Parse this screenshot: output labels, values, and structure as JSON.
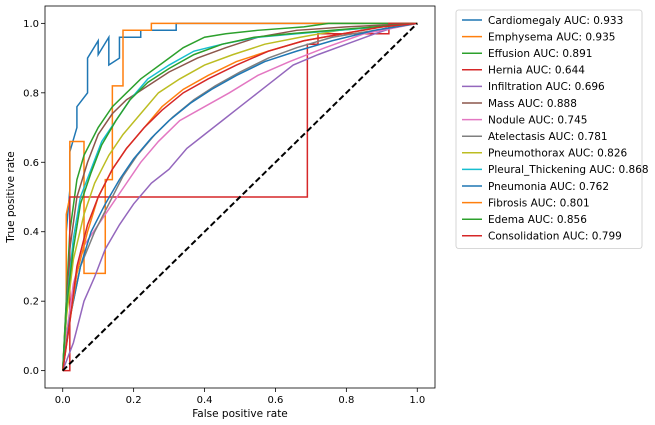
{
  "chart_data": {
    "type": "line",
    "title": "",
    "xlabel": "False positive rate",
    "ylabel": "True positive rate",
    "xlim": [
      -0.05,
      1.05
    ],
    "ylim": [
      -0.05,
      1.05
    ],
    "xticks": [
      "0.0",
      "0.2",
      "0.4",
      "0.6",
      "0.8",
      "1.0"
    ],
    "yticks": [
      "0.0",
      "0.2",
      "0.4",
      "0.6",
      "0.8",
      "1.0"
    ],
    "grid": false,
    "legend_position": "outside-right",
    "reference_line": {
      "x": [
        0,
        1
      ],
      "y": [
        0,
        1
      ],
      "color": "#000000",
      "style": "dashed"
    },
    "series": [
      {
        "name": "Cardiomegaly AUC: 0.933",
        "color": "#1f77b4",
        "x": [
          0,
          0.01,
          0.01,
          0.02,
          0.02,
          0.04,
          0.04,
          0.07,
          0.07,
          0.1,
          0.1,
          0.13,
          0.13,
          0.16,
          0.16,
          0.22,
          0.22,
          0.32,
          0.32,
          0.7,
          0.7,
          1.0
        ],
        "y": [
          0,
          0.15,
          0.4,
          0.52,
          0.63,
          0.7,
          0.76,
          0.8,
          0.9,
          0.95,
          0.91,
          0.96,
          0.88,
          0.9,
          0.96,
          0.96,
          0.98,
          0.98,
          1.0,
          1.0,
          1.0,
          1.0
        ]
      },
      {
        "name": "Emphysema AUC: 0.935",
        "color": "#ff7f0e",
        "x": [
          0,
          0.01,
          0.01,
          0.02,
          0.02,
          0.06,
          0.06,
          0.12,
          0.12,
          0.14,
          0.14,
          0.17,
          0.17,
          0.25,
          0.25,
          1.0
        ],
        "y": [
          0,
          0.2,
          0.45,
          0.5,
          0.66,
          0.66,
          0.28,
          0.28,
          0.55,
          0.55,
          0.82,
          0.82,
          0.98,
          0.98,
          1.0,
          1.0
        ]
      },
      {
        "name": "Effusion AUC: 0.891",
        "color": "#2ca02c",
        "x": [
          0,
          0.01,
          0.02,
          0.04,
          0.06,
          0.1,
          0.14,
          0.18,
          0.22,
          0.3,
          0.34,
          0.4,
          0.46,
          0.55,
          0.68,
          0.75,
          1.0
        ],
        "y": [
          0,
          0.2,
          0.4,
          0.55,
          0.62,
          0.7,
          0.76,
          0.8,
          0.84,
          0.9,
          0.93,
          0.96,
          0.97,
          0.98,
          0.99,
          1.0,
          1.0
        ]
      },
      {
        "name": "Hernia AUC: 0.644",
        "color": "#d62728",
        "x": [
          0,
          0.02,
          0.02,
          0.69,
          0.69,
          0.72,
          0.72,
          0.92,
          0.92,
          1.0
        ],
        "y": [
          0,
          0.0,
          0.5,
          0.5,
          0.94,
          0.94,
          0.97,
          0.97,
          1.0,
          1.0
        ]
      },
      {
        "name": "Infiltration AUC: 0.696",
        "color": "#9467bd",
        "x": [
          0,
          0.03,
          0.06,
          0.09,
          0.12,
          0.16,
          0.2,
          0.25,
          0.3,
          0.35,
          0.4,
          0.45,
          0.5,
          0.55,
          0.6,
          0.65,
          0.72,
          0.8,
          0.88,
          0.94,
          1.0
        ],
        "y": [
          0,
          0.08,
          0.2,
          0.27,
          0.35,
          0.42,
          0.48,
          0.54,
          0.58,
          0.64,
          0.68,
          0.72,
          0.76,
          0.8,
          0.84,
          0.88,
          0.91,
          0.94,
          0.97,
          0.99,
          1.0
        ]
      },
      {
        "name": "Mass AUC: 0.888",
        "color": "#8c564b",
        "x": [
          0,
          0.01,
          0.02,
          0.04,
          0.07,
          0.1,
          0.14,
          0.18,
          0.24,
          0.3,
          0.38,
          0.46,
          0.55,
          0.66,
          0.8,
          1.0
        ],
        "y": [
          0,
          0.18,
          0.35,
          0.5,
          0.6,
          0.68,
          0.74,
          0.78,
          0.82,
          0.86,
          0.9,
          0.93,
          0.96,
          0.98,
          0.99,
          1.0
        ]
      },
      {
        "name": "Nodule AUC: 0.745",
        "color": "#e377c2",
        "x": [
          0,
          0.01,
          0.03,
          0.06,
          0.1,
          0.14,
          0.18,
          0.22,
          0.27,
          0.33,
          0.4,
          0.47,
          0.55,
          0.64,
          0.74,
          0.85,
          1.0
        ],
        "y": [
          0,
          0.1,
          0.25,
          0.36,
          0.42,
          0.48,
          0.54,
          0.6,
          0.66,
          0.72,
          0.76,
          0.8,
          0.85,
          0.89,
          0.93,
          0.97,
          1.0
        ]
      },
      {
        "name": "Atelectasis AUC: 0.781",
        "color": "#7f7f7f",
        "x": [
          0,
          0.02,
          0.05,
          0.09,
          0.13,
          0.17,
          0.21,
          0.26,
          0.31,
          0.37,
          0.43,
          0.5,
          0.58,
          0.66,
          0.76,
          0.88,
          1.0
        ],
        "y": [
          0,
          0.15,
          0.3,
          0.4,
          0.48,
          0.56,
          0.62,
          0.68,
          0.73,
          0.78,
          0.82,
          0.86,
          0.9,
          0.93,
          0.96,
          0.98,
          1.0
        ]
      },
      {
        "name": "Pneumothorax AUC: 0.826",
        "color": "#bcbd22",
        "x": [
          0,
          0.01,
          0.03,
          0.06,
          0.09,
          0.13,
          0.17,
          0.22,
          0.27,
          0.33,
          0.4,
          0.48,
          0.57,
          0.67,
          0.78,
          0.9,
          1.0
        ],
        "y": [
          0,
          0.15,
          0.32,
          0.45,
          0.54,
          0.62,
          0.68,
          0.74,
          0.8,
          0.84,
          0.88,
          0.91,
          0.94,
          0.96,
          0.98,
          0.99,
          1.0
        ]
      },
      {
        "name": "Pleural_Thickening AUC: 0.868",
        "color": "#17becf",
        "x": [
          0,
          0.01,
          0.03,
          0.05,
          0.08,
          0.11,
          0.15,
          0.19,
          0.24,
          0.3,
          0.37,
          0.45,
          0.55,
          0.66,
          0.78,
          0.9,
          1.0
        ],
        "y": [
          0,
          0.18,
          0.38,
          0.5,
          0.58,
          0.66,
          0.72,
          0.78,
          0.84,
          0.88,
          0.92,
          0.94,
          0.96,
          0.97,
          0.98,
          0.99,
          1.0
        ]
      },
      {
        "name": "Pneumonia AUC: 0.762",
        "color": "#1f77b4",
        "x": [
          0,
          0.02,
          0.05,
          0.08,
          0.12,
          0.16,
          0.2,
          0.25,
          0.3,
          0.36,
          0.42,
          0.49,
          0.57,
          0.66,
          0.76,
          0.88,
          1.0
        ],
        "y": [
          0,
          0.15,
          0.3,
          0.4,
          0.48,
          0.55,
          0.61,
          0.67,
          0.72,
          0.77,
          0.81,
          0.85,
          0.89,
          0.92,
          0.95,
          0.98,
          1.0
        ]
      },
      {
        "name": "Fibrosis AUC: 0.801",
        "color": "#ff7f0e",
        "x": [
          0,
          0.02,
          0.04,
          0.07,
          0.1,
          0.14,
          0.18,
          0.23,
          0.28,
          0.34,
          0.41,
          0.49,
          0.58,
          0.68,
          0.79,
          0.9,
          1.0
        ],
        "y": [
          0,
          0.14,
          0.28,
          0.4,
          0.5,
          0.58,
          0.64,
          0.7,
          0.76,
          0.81,
          0.85,
          0.89,
          0.92,
          0.95,
          0.97,
          0.99,
          1.0
        ]
      },
      {
        "name": "Edema AUC: 0.856",
        "color": "#2ca02c",
        "x": [
          0,
          0.01,
          0.03,
          0.05,
          0.08,
          0.11,
          0.15,
          0.19,
          0.24,
          0.3,
          0.37,
          0.45,
          0.54,
          0.64,
          0.76,
          0.88,
          1.0
        ],
        "y": [
          0,
          0.18,
          0.35,
          0.48,
          0.57,
          0.65,
          0.72,
          0.78,
          0.83,
          0.87,
          0.91,
          0.94,
          0.96,
          0.97,
          0.98,
          0.99,
          1.0
        ]
      },
      {
        "name": "Consolidation AUC: 0.799",
        "color": "#d62728",
        "x": [
          0,
          0.02,
          0.04,
          0.07,
          0.1,
          0.14,
          0.18,
          0.23,
          0.28,
          0.34,
          0.41,
          0.49,
          0.58,
          0.68,
          0.79,
          0.9,
          1.0
        ],
        "y": [
          0,
          0.14,
          0.3,
          0.42,
          0.5,
          0.58,
          0.64,
          0.7,
          0.75,
          0.8,
          0.84,
          0.88,
          0.92,
          0.95,
          0.97,
          0.99,
          1.0
        ]
      }
    ]
  }
}
